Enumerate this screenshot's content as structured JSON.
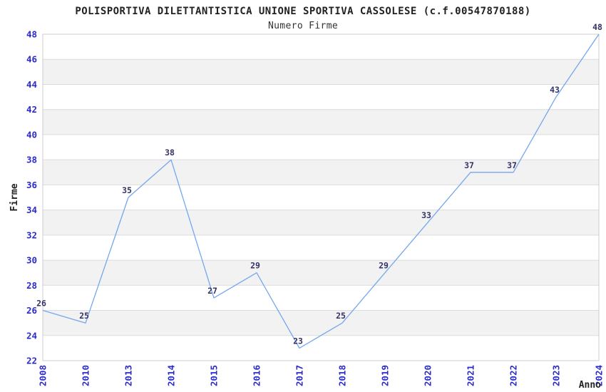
{
  "chart_data": {
    "type": "line",
    "title": "POLISPORTIVA DILETTANTISTICA UNIONE SPORTIVA CASSOLESE (c.f.00547870188)",
    "subtitle": "Numero Firme",
    "xlabel": "Anno",
    "ylabel": "Firme",
    "categories": [
      "2008",
      "2010",
      "2013",
      "2014",
      "2015",
      "2016",
      "2017",
      "2018",
      "2019",
      "2020",
      "2021",
      "2022",
      "2023",
      "2024"
    ],
    "values": [
      26,
      25,
      35,
      38,
      27,
      29,
      23,
      25,
      29,
      33,
      37,
      37,
      43,
      48
    ],
    "yticks": [
      22,
      24,
      26,
      28,
      30,
      32,
      34,
      36,
      38,
      40,
      42,
      44,
      46,
      48
    ],
    "ylim": [
      22,
      48
    ],
    "grid": true,
    "legend": "none",
    "band_fill_ranges": [
      [
        24,
        26
      ],
      [
        28,
        30
      ],
      [
        32,
        34
      ],
      [
        36,
        38
      ],
      [
        40,
        42
      ],
      [
        44,
        46
      ]
    ],
    "colors": {
      "line": "#74A7EC",
      "tick_label": "#2B2BCD",
      "data_label": "#333366",
      "band": "#F2F2F2",
      "gridline": "#DCDCDC",
      "border": "#CCCCCC",
      "title": "#222222",
      "axis_label": "#222222",
      "background": "#FFFFFF"
    }
  }
}
